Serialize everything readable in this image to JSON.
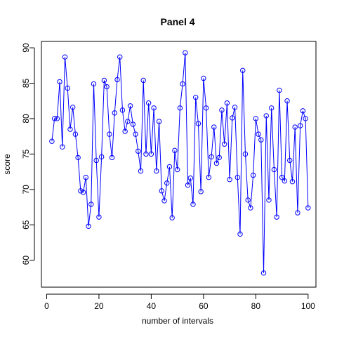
{
  "chart_data": {
    "type": "line",
    "title": "Panel 4",
    "xlabel": "number of intervals",
    "ylabel": "score",
    "xlim": [
      -2.0,
      103.0
    ],
    "ylim": [
      56.2,
      90.9
    ],
    "xticks": [
      0,
      20,
      40,
      60,
      80,
      100
    ],
    "yticks": [
      60,
      65,
      70,
      75,
      80,
      85,
      90
    ],
    "grid": false,
    "legend": "none",
    "colors": {
      "series": "#0000ff",
      "axis": "#000000"
    },
    "series": [
      {
        "x": [
          2,
          3,
          4,
          5,
          6,
          7,
          8,
          9,
          10,
          11,
          12,
          13,
          14,
          15,
          16,
          17,
          18,
          19,
          20,
          21,
          22,
          23,
          24,
          25,
          26,
          27,
          28,
          29,
          30,
          31,
          32,
          33,
          34,
          35,
          36,
          37,
          38,
          39,
          40,
          41,
          42,
          43,
          44,
          45,
          46,
          47,
          48,
          49,
          50,
          51,
          52,
          53,
          54,
          55,
          56,
          57,
          58,
          59,
          60,
          61,
          62,
          63,
          64,
          65,
          66,
          67,
          68,
          69,
          70,
          71,
          72,
          73,
          74,
          75,
          76,
          77,
          78,
          79,
          80,
          81,
          82,
          83,
          84,
          85,
          86,
          87,
          88,
          89,
          90,
          91,
          92,
          93,
          94,
          95,
          96,
          97,
          98,
          99,
          100
        ],
        "values": [
          76.8,
          80.0,
          80.0,
          85.2,
          76.0,
          88.7,
          84.3,
          78.5,
          81.6,
          77.8,
          74.5,
          69.8,
          69.6,
          71.7,
          64.8,
          67.9,
          84.9,
          74.1,
          66.1,
          74.6,
          85.4,
          84.5,
          77.8,
          74.5,
          80.8,
          85.5,
          88.7,
          81.2,
          78.2,
          79.6,
          81.8,
          79.2,
          77.8,
          75.4,
          72.6,
          85.4,
          75.0,
          82.2,
          75.0,
          81.5,
          72.6,
          79.6,
          69.8,
          68.4,
          70.9,
          73.2,
          66.0,
          75.5,
          72.8,
          81.5,
          84.9,
          89.3,
          70.6,
          71.6,
          67.9,
          83.0,
          79.3,
          69.7,
          85.7,
          81.5,
          71.7,
          74.6,
          78.8,
          73.7,
          74.5,
          81.2,
          76.4,
          82.2,
          71.4,
          80.1,
          81.6,
          71.7,
          63.7,
          86.8,
          75.0,
          68.5,
          67.4,
          72.0,
          80.0,
          77.8,
          77.0,
          58.2,
          80.4,
          68.5,
          81.5,
          72.8,
          66.1,
          84.0,
          71.7,
          71.2,
          82.5,
          74.1,
          71.1,
          78.8,
          66.7,
          79.0,
          81.1,
          80.0,
          67.4
        ]
      }
    ]
  }
}
